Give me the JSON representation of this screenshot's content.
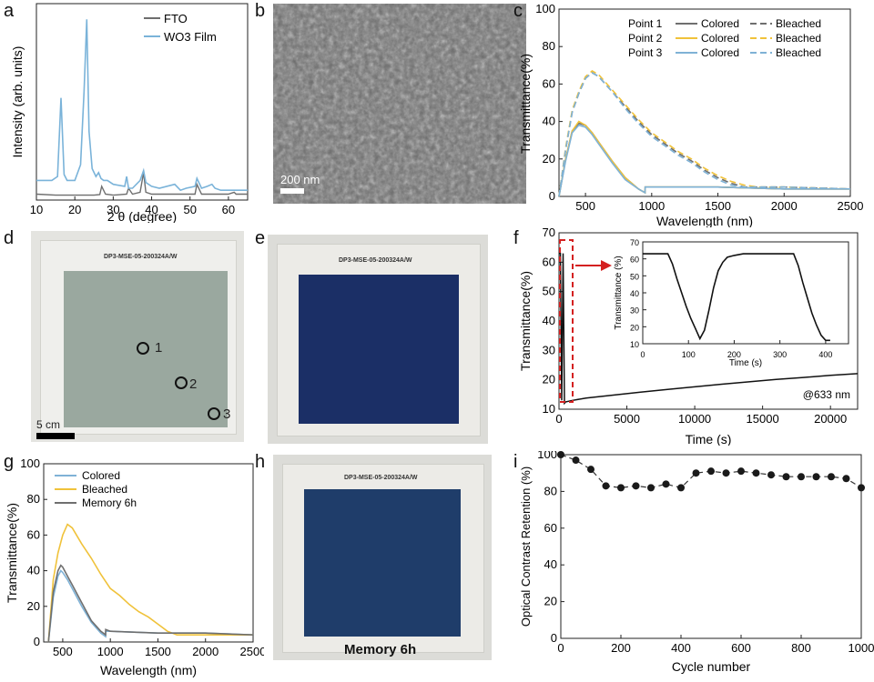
{
  "panels": {
    "a": {
      "letter": "a",
      "xlabel": "2 θ (degree)",
      "ylabel": "Intensity (arb. units)",
      "legend": [
        "FTO",
        "WO3 Film"
      ],
      "xticks": [
        "10",
        "20",
        "30",
        "40",
        "50",
        "60"
      ]
    },
    "b": {
      "letter": "b",
      "scale": "200 nm"
    },
    "c": {
      "letter": "c",
      "xlabel": "Wavelength (nm)",
      "ylabel": "Transmittance(%)",
      "xticks": [
        "500",
        "1000",
        "1500",
        "2000",
        "2500"
      ],
      "yticks": [
        "0",
        "20",
        "40",
        "60",
        "80",
        "100"
      ],
      "legend_rows": [
        {
          "point": "Point 1",
          "colored": "Colored",
          "bleached": "Bleached"
        },
        {
          "point": "Point 2",
          "colored": "Colored",
          "bleached": "Bleached"
        },
        {
          "point": "Point 3",
          "colored": "Colored",
          "bleached": "Bleached"
        }
      ]
    },
    "d": {
      "letter": "d",
      "sample": "DP3-MSE-05-200324A/W",
      "scale": "5 cm",
      "markers": [
        "1",
        "2",
        "3"
      ]
    },
    "e": {
      "letter": "e",
      "sample": "DP3-MSE-05-200324A/W"
    },
    "f": {
      "letter": "f",
      "xlabel": "Time (s)",
      "ylabel": "Transmittance(%)",
      "xticks": [
        "0",
        "5000",
        "10000",
        "15000",
        "20000"
      ],
      "yticks": [
        "10",
        "20",
        "30",
        "40",
        "50",
        "60",
        "70"
      ],
      "annotation": "@633 nm",
      "inset": {
        "xlabel": "Time (s)",
        "ylabel": "Transmittance (%)",
        "xticks": [
          "0",
          "100",
          "200",
          "300",
          "400"
        ],
        "yticks": [
          "10",
          "20",
          "30",
          "40",
          "50",
          "60",
          "70"
        ]
      }
    },
    "g": {
      "letter": "g",
      "xlabel": "Wavelength (nm)",
      "ylabel": "Transmittance(%)",
      "xticks": [
        "500",
        "1000",
        "1500",
        "2000",
        "2500"
      ],
      "yticks": [
        "0",
        "20",
        "40",
        "60",
        "80",
        "100"
      ],
      "legend": [
        "Colored",
        "Bleached",
        "Memory 6h"
      ]
    },
    "h": {
      "letter": "h",
      "sample": "DP3-MSE-05-200324A/W",
      "caption": "Memory 6h"
    },
    "i": {
      "letter": "i",
      "xlabel": "Cycle number",
      "ylabel": "Optical Contrast Retention (%)",
      "xticks": [
        "0",
        "200",
        "400",
        "600",
        "800",
        "1000"
      ],
      "yticks": [
        "0",
        "20",
        "40",
        "60",
        "80",
        "100"
      ]
    }
  },
  "colors": {
    "fto": "#6e6e6e",
    "wo3": "#7ab3d9",
    "gray": "#6f6f6f",
    "yellow": "#f0c23a",
    "blue": "#7fb2d6",
    "black": "#111111",
    "red": "#d42020"
  },
  "chart_data": [
    {
      "id": "a",
      "type": "line",
      "xlim": [
        10,
        65
      ],
      "ylim": [
        0,
        1
      ],
      "series": [
        {
          "name": "FTO",
          "x": [
            10,
            15,
            20,
            25,
            26.5,
            27,
            28,
            30,
            33.5,
            34,
            35,
            37,
            37.9,
            38.5,
            40,
            45,
            51.3,
            51.8,
            53,
            55,
            60,
            61.5,
            62,
            65
          ],
          "y": [
            0.03,
            0.025,
            0.025,
            0.025,
            0.028,
            0.07,
            0.03,
            0.025,
            0.03,
            0.06,
            0.03,
            0.04,
            0.14,
            0.04,
            0.03,
            0.03,
            0.03,
            0.08,
            0.03,
            0.03,
            0.03,
            0.04,
            0.03,
            0.03
          ]
        },
        {
          "name": "WO3 Film",
          "x": [
            10,
            14,
            15.5,
            16.4,
            17.2,
            18,
            20,
            21.5,
            22.4,
            23.1,
            23.7,
            24.5,
            25.5,
            26.2,
            26.8,
            27.5,
            28.5,
            30,
            33,
            33.5,
            34,
            35,
            37,
            37.9,
            38.5,
            40,
            42,
            46,
            47.5,
            49,
            51.3,
            51.8,
            53,
            54.5,
            55.7,
            56.5,
            58,
            60,
            62,
            65
          ],
          "y": [
            0.1,
            0.1,
            0.12,
            0.52,
            0.13,
            0.1,
            0.1,
            0.18,
            0.55,
            0.92,
            0.35,
            0.16,
            0.12,
            0.14,
            0.11,
            0.1,
            0.1,
            0.08,
            0.07,
            0.12,
            0.06,
            0.06,
            0.1,
            0.15,
            0.09,
            0.07,
            0.06,
            0.08,
            0.05,
            0.06,
            0.07,
            0.11,
            0.06,
            0.07,
            0.08,
            0.06,
            0.05,
            0.05,
            0.05,
            0.05
          ]
        }
      ]
    },
    {
      "id": "c",
      "type": "line",
      "xlim": [
        300,
        2500
      ],
      "ylim": [
        0,
        100
      ],
      "series": [
        {
          "name": "Point 1 Colored",
          "x": [
            300,
            350,
            400,
            450,
            500,
            550,
            600,
            700,
            800,
            900,
            950,
            951,
            1000,
            1500,
            2000,
            2500
          ],
          "y": [
            0,
            20,
            35,
            39,
            38,
            34,
            29,
            19,
            10,
            4,
            2,
            5,
            5,
            5,
            4,
            4
          ]
        },
        {
          "name": "Point 1 Bleached",
          "x": [
            300,
            350,
            400,
            450,
            500,
            550,
            600,
            700,
            800,
            900,
            1000,
            1100,
            1200,
            1300,
            1400,
            1500,
            1600,
            1700,
            1800,
            2000,
            2500
          ],
          "y": [
            0,
            25,
            45,
            55,
            63,
            66,
            64,
            56,
            48,
            40,
            33,
            28,
            23,
            19,
            14,
            10,
            7,
            5,
            5,
            5,
            4
          ]
        },
        {
          "name": "Point 2 Colored",
          "x": [
            300,
            350,
            400,
            450,
            500,
            550,
            600,
            700,
            800,
            900,
            950,
            951,
            1000,
            1500,
            2000,
            2500
          ],
          "y": [
            0,
            20,
            35,
            40,
            38,
            34,
            29,
            19,
            10,
            4,
            2,
            5,
            5,
            5,
            4,
            4
          ]
        },
        {
          "name": "Point 2 Bleached",
          "x": [
            300,
            350,
            400,
            450,
            500,
            550,
            600,
            700,
            800,
            900,
            1000,
            1100,
            1200,
            1300,
            1400,
            1500,
            1600,
            1700,
            1800,
            2000,
            2500
          ],
          "y": [
            0,
            26,
            46,
            56,
            64,
            67,
            65,
            57,
            49,
            41,
            34,
            29,
            24,
            20,
            15,
            11,
            8,
            6,
            5,
            5,
            4
          ]
        },
        {
          "name": "Point 3 Colored",
          "x": [
            300,
            350,
            400,
            450,
            500,
            550,
            600,
            700,
            800,
            900,
            950,
            951,
            1000,
            1500,
            2000,
            2500
          ],
          "y": [
            0,
            19,
            34,
            38,
            37,
            33,
            28,
            18,
            9,
            4,
            2,
            5,
            5,
            5,
            4,
            4
          ]
        },
        {
          "name": "Point 3 Bleached",
          "x": [
            300,
            350,
            400,
            450,
            500,
            550,
            600,
            700,
            800,
            900,
            1000,
            1100,
            1200,
            1300,
            1400,
            1500,
            1600,
            1700,
            1800,
            2000,
            2500
          ],
          "y": [
            0,
            25,
            45,
            55,
            63,
            66,
            64,
            56,
            47,
            39,
            32,
            27,
            22,
            18,
            13,
            9,
            6,
            5,
            5,
            5,
            4
          ]
        }
      ]
    },
    {
      "id": "f",
      "type": "line",
      "xlim": [
        0,
        22000
      ],
      "ylim": [
        10,
        70
      ],
      "series": [
        {
          "x": [
            0,
            100,
            200,
            300,
            400,
            500,
            1000,
            2000,
            4000,
            6000,
            8000,
            10000,
            12000,
            14000,
            16000,
            18000,
            20000,
            22000
          ],
          "y": [
            63,
            63,
            13,
            63,
            12,
            12.5,
            13,
            13.8,
            14.8,
            15.8,
            16.7,
            17.6,
            18.5,
            19.3,
            20.1,
            20.8,
            21.5,
            22.1
          ]
        }
      ],
      "inset": {
        "xlim": [
          0,
          450
        ],
        "ylim": [
          10,
          70
        ],
        "x": [
          0,
          20,
          40,
          55,
          65,
          75,
          85,
          95,
          105,
          115,
          125,
          135,
          145,
          155,
          165,
          175,
          185,
          200,
          220,
          260,
          300,
          330,
          340,
          350,
          360,
          370,
          380,
          390,
          400,
          410
        ],
        "y": [
          63,
          63,
          63,
          63,
          57,
          48,
          40,
          32,
          25,
          19,
          13,
          18,
          30,
          43,
          53,
          58,
          61,
          62,
          63,
          63,
          63,
          63,
          56,
          46,
          37,
          28,
          21,
          15,
          12,
          12
        ]
      }
    },
    {
      "id": "g",
      "type": "line",
      "xlim": [
        300,
        2500
      ],
      "ylim": [
        0,
        100
      ],
      "series": [
        {
          "name": "Colored",
          "x": [
            350,
            400,
            450,
            480,
            500,
            550,
            600,
            700,
            800,
            900,
            950,
            951,
            1000,
            1500,
            2000,
            2500
          ],
          "y": [
            0,
            25,
            37,
            40,
            39,
            35,
            30,
            20,
            11,
            5,
            3,
            6,
            6,
            5,
            5,
            4
          ]
        },
        {
          "name": "Bleached",
          "x": [
            350,
            400,
            450,
            500,
            550,
            600,
            700,
            800,
            900,
            1000,
            1100,
            1200,
            1300,
            1400,
            1500,
            1600,
            1700,
            1800,
            2000,
            2500
          ],
          "y": [
            0,
            35,
            50,
            60,
            66,
            64,
            55,
            47,
            38,
            30,
            26,
            21,
            17,
            14,
            10,
            6,
            4,
            4,
            4,
            4
          ]
        },
        {
          "name": "Memory 6h",
          "x": [
            350,
            400,
            450,
            480,
            500,
            550,
            600,
            700,
            800,
            900,
            950,
            951,
            1000,
            1500,
            2000,
            2500
          ],
          "y": [
            0,
            28,
            40,
            43,
            42,
            37,
            32,
            22,
            12,
            6,
            4,
            7,
            6,
            5,
            5,
            4
          ]
        }
      ]
    },
    {
      "id": "i",
      "type": "scatter",
      "xlim": [
        0,
        1000
      ],
      "ylim": [
        0,
        100
      ],
      "series": [
        {
          "x": [
            0,
            50,
            100,
            150,
            200,
            250,
            300,
            350,
            400,
            450,
            500,
            550,
            600,
            650,
            700,
            750,
            800,
            850,
            900,
            950,
            1000
          ],
          "y": [
            100,
            97,
            92,
            83,
            82,
            83,
            82,
            84,
            82,
            90,
            91,
            90,
            91,
            90,
            89,
            88,
            88,
            88,
            88,
            87,
            82
          ]
        }
      ]
    }
  ]
}
